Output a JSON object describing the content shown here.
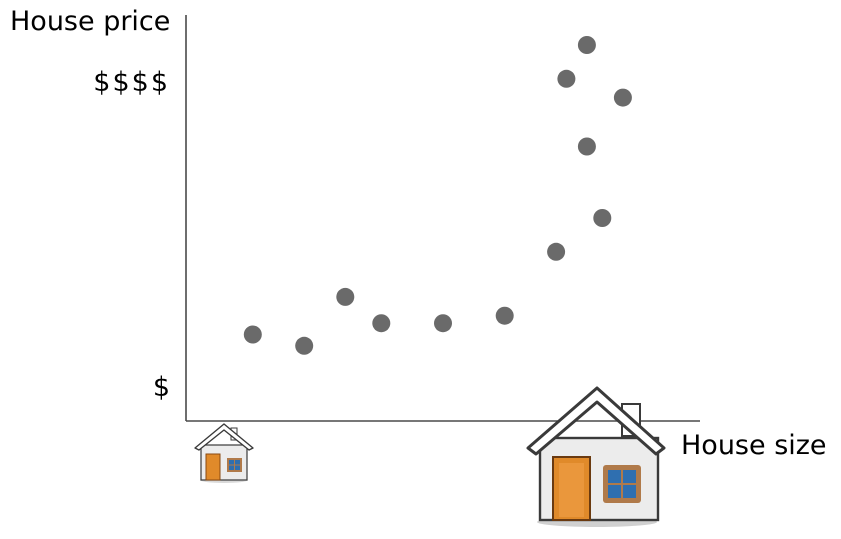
{
  "colors": {
    "point": "#6a6a6a",
    "axis": "#4a4a4a",
    "house_wall": "#ececec",
    "house_roof": "#ffffff",
    "house_outline": "#3a3a3a",
    "door": "#e08a2a",
    "window_glass": "#2f6fb0",
    "window_frame": "#b07a4a"
  },
  "icons": {
    "x_start": "small-house-icon",
    "x_end": "large-house-icon"
  },
  "chart_data": {
    "type": "scatter",
    "title": "",
    "xlabel": "House size",
    "ylabel": "House price",
    "xlim": [
      0,
      10
    ],
    "ylim": [
      0,
      10
    ],
    "grid": false,
    "legend": "none",
    "y_ticks": [
      {
        "value": 1,
        "label": "$"
      },
      {
        "value": 9.7,
        "label": "$$$$"
      }
    ],
    "points": [
      {
        "x": 1.3,
        "y": 2.3
      },
      {
        "x": 2.3,
        "y": 2.0
      },
      {
        "x": 3.1,
        "y": 3.3
      },
      {
        "x": 3.8,
        "y": 2.6
      },
      {
        "x": 5.0,
        "y": 2.6
      },
      {
        "x": 6.2,
        "y": 2.8
      },
      {
        "x": 7.2,
        "y": 4.5
      },
      {
        "x": 8.1,
        "y": 5.4
      },
      {
        "x": 7.8,
        "y": 7.3
      },
      {
        "x": 7.4,
        "y": 9.1
      },
      {
        "x": 7.8,
        "y": 10.0
      },
      {
        "x": 8.5,
        "y": 8.6
      }
    ]
  }
}
